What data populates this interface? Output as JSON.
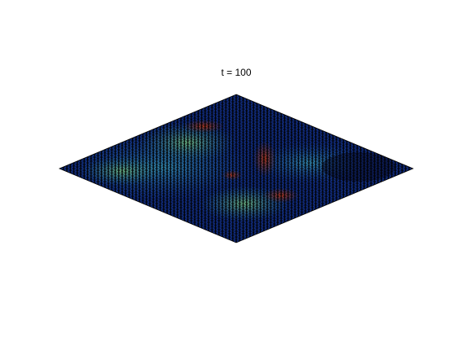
{
  "title": "t = 100"
}
